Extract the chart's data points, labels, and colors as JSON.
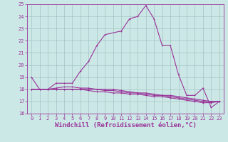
{
  "main_line_x": [
    0,
    1,
    2,
    3,
    4,
    5,
    6,
    7,
    8,
    9,
    11,
    12,
    13,
    14,
    15,
    16,
    17,
    18,
    19,
    20,
    21,
    22,
    23
  ],
  "main_line_y": [
    19.0,
    18.0,
    18.0,
    18.5,
    18.5,
    18.5,
    19.5,
    20.3,
    21.6,
    22.5,
    22.8,
    23.8,
    24.0,
    24.9,
    23.8,
    21.6,
    21.6,
    19.2,
    17.5,
    17.5,
    18.1,
    16.5,
    17.0
  ],
  "flat1_x": [
    0,
    1,
    2,
    3,
    4,
    5,
    6,
    7,
    8,
    9,
    10,
    11,
    12,
    13,
    14,
    15,
    16,
    17,
    18,
    19,
    20,
    21,
    22,
    23
  ],
  "flat1_y": [
    18.0,
    18.0,
    18.0,
    18.1,
    18.2,
    18.2,
    18.1,
    18.1,
    18.0,
    18.0,
    18.0,
    17.9,
    17.8,
    17.7,
    17.7,
    17.6,
    17.5,
    17.5,
    17.4,
    17.3,
    17.2,
    17.1,
    17.0,
    17.0
  ],
  "flat2_x": [
    0,
    1,
    2,
    3,
    4,
    5,
    6,
    7,
    8,
    9,
    10,
    11,
    12,
    13,
    14,
    15,
    16,
    17,
    18,
    19,
    20,
    21,
    22,
    23
  ],
  "flat2_y": [
    18.0,
    18.0,
    18.0,
    18.0,
    18.0,
    18.0,
    18.0,
    18.0,
    18.0,
    17.9,
    17.9,
    17.8,
    17.7,
    17.7,
    17.6,
    17.5,
    17.5,
    17.4,
    17.3,
    17.2,
    17.1,
    17.0,
    17.0,
    17.0
  ],
  "flat3_x": [
    0,
    1,
    2,
    3,
    4,
    5,
    6,
    7,
    8,
    9,
    10,
    11,
    12,
    13,
    14,
    15,
    16,
    17,
    18,
    19,
    20,
    21,
    22,
    23
  ],
  "flat3_y": [
    18.0,
    18.0,
    18.0,
    18.0,
    18.0,
    18.0,
    18.0,
    17.9,
    17.8,
    17.8,
    17.7,
    17.7,
    17.6,
    17.6,
    17.5,
    17.4,
    17.4,
    17.3,
    17.2,
    17.1,
    17.0,
    16.9,
    16.9,
    17.0
  ],
  "line_color": "#993399",
  "bg_color": "#cce8e6",
  "grid_color": "#99bbbb",
  "ylim": [
    16,
    25
  ],
  "xlim": [
    -0.5,
    23.5
  ],
  "yticks": [
    16,
    17,
    18,
    19,
    20,
    21,
    22,
    23,
    24,
    25
  ],
  "xticks": [
    0,
    1,
    2,
    3,
    4,
    5,
    6,
    7,
    8,
    9,
    10,
    11,
    12,
    13,
    14,
    15,
    16,
    17,
    18,
    19,
    20,
    21,
    22,
    23
  ],
  "xlabel": "Windchill (Refroidissement éolien,°C)",
  "tick_fontsize": 5.0,
  "xlabel_fontsize": 6.5,
  "lw": 0.8,
  "ms": 2.0
}
